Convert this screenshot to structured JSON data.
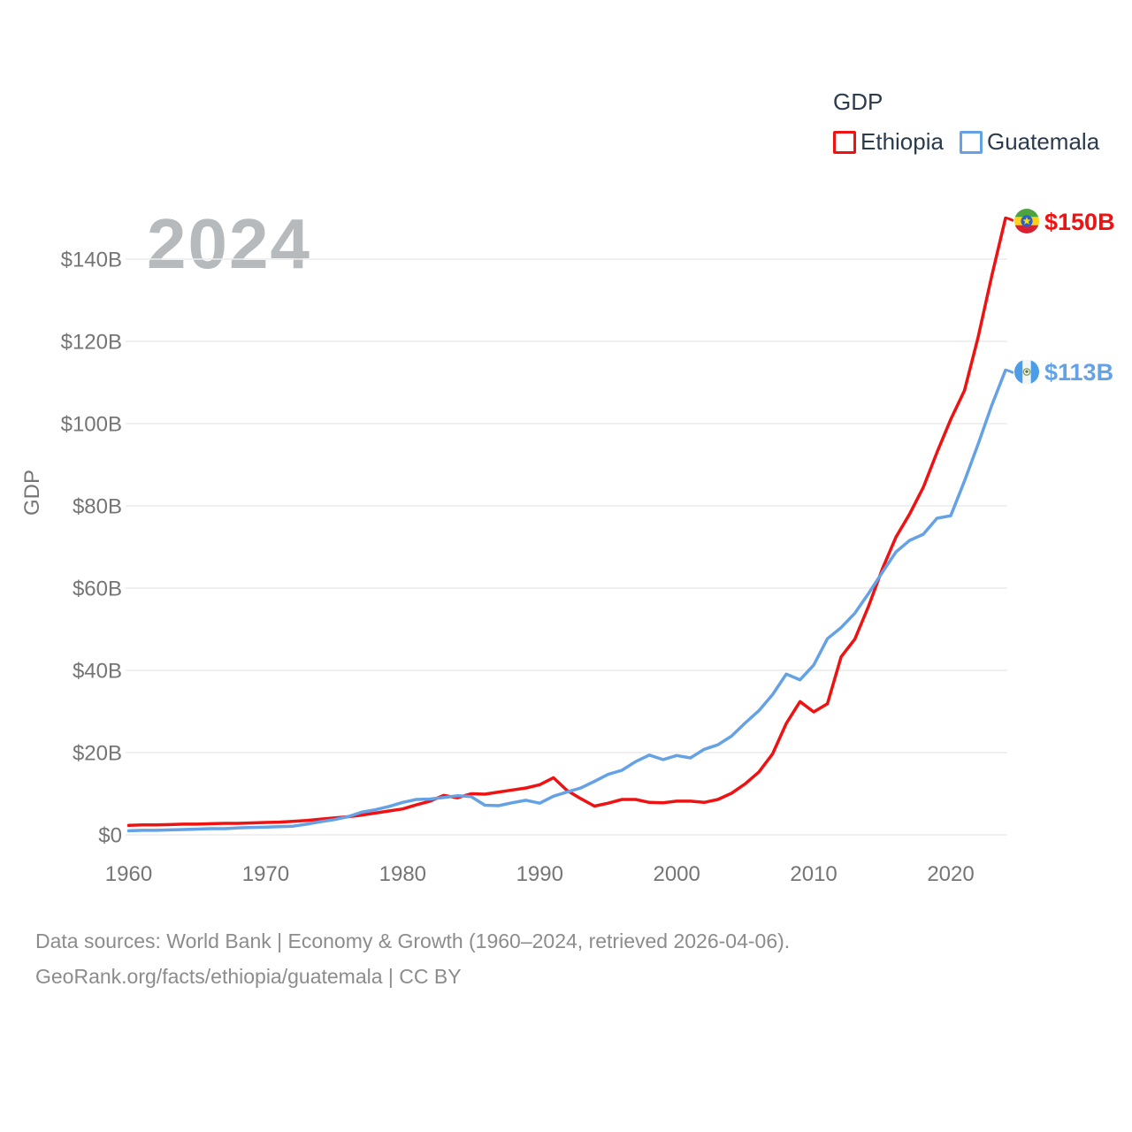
{
  "legend": {
    "title": "GDP",
    "series": [
      {
        "label": "Ethiopia",
        "color": "#ee1212"
      },
      {
        "label": "Guatemala",
        "color": "#64a2e5"
      }
    ]
  },
  "watermark": "2024",
  "axis": {
    "y_title": "GDP",
    "x_tick_labels": [
      "1960",
      "1970",
      "1980",
      "1990",
      "2000",
      "2010",
      "2020"
    ]
  },
  "end_labels": [
    {
      "series": "Ethiopia",
      "value": "$150B",
      "flag_icon": "ethiopia-flag-icon"
    },
    {
      "series": "Guatemala",
      "value": "$113B",
      "flag_icon": "guatemala-flag-icon"
    }
  ],
  "footer": {
    "line1": "Data sources: World Bank | Economy & Growth (1960–2024, retrieved 2026-04-06).",
    "line2": "GeoRank.org/facts/ethiopia/guatemala | CC BY"
  },
  "colors": {
    "ethiopia_line": "#ee1212",
    "guatemala_line": "#64a2e5",
    "grid": "#ebebeb",
    "axis_text": "#757575",
    "watermark": "#b6babd",
    "legend_text": "#2a3b4d",
    "footer_text": "#8c8c8c"
  },
  "chart_data": {
    "type": "line",
    "title": "GDP",
    "ylabel": "GDP",
    "xlabel": "",
    "ylim": [
      0,
      150
    ],
    "x_range": [
      1960,
      2024
    ],
    "grid": true,
    "legend_position": "top-right",
    "y_ticks": [
      {
        "value": 0,
        "label": "$0"
      },
      {
        "value": 20,
        "label": "$20B"
      },
      {
        "value": 40,
        "label": "$40B"
      },
      {
        "value": 60,
        "label": "$60B"
      },
      {
        "value": 80,
        "label": "$80B"
      },
      {
        "value": 100,
        "label": "$100B"
      },
      {
        "value": 120,
        "label": "$120B"
      },
      {
        "value": 140,
        "label": "$140B"
      }
    ],
    "x_ticks": [
      1960,
      1970,
      1980,
      1990,
      2000,
      2010,
      2020
    ],
    "x": [
      1960,
      1961,
      1962,
      1963,
      1964,
      1965,
      1966,
      1967,
      1968,
      1969,
      1970,
      1971,
      1972,
      1973,
      1974,
      1975,
      1976,
      1977,
      1978,
      1979,
      1980,
      1981,
      1982,
      1983,
      1984,
      1985,
      1986,
      1987,
      1988,
      1989,
      1990,
      1991,
      1992,
      1993,
      1994,
      1995,
      1996,
      1997,
      1998,
      1999,
      2000,
      2001,
      2002,
      2003,
      2004,
      2005,
      2006,
      2007,
      2008,
      2009,
      2010,
      2011,
      2012,
      2013,
      2014,
      2015,
      2016,
      2017,
      2018,
      2019,
      2020,
      2021,
      2022,
      2023,
      2024
    ],
    "series": [
      {
        "name": "Ethiopia",
        "unit": "billion USD",
        "values": [
          2.3,
          2.4,
          2.4,
          2.5,
          2.6,
          2.6,
          2.7,
          2.8,
          2.8,
          2.9,
          3.0,
          3.1,
          3.3,
          3.5,
          3.8,
          4.1,
          4.4,
          4.8,
          5.3,
          5.8,
          6.3,
          7.3,
          8.2,
          9.6,
          9.0,
          10.0,
          9.9,
          10.4,
          10.9,
          11.4,
          12.2,
          13.9,
          10.8,
          8.8,
          7.0,
          7.7,
          8.6,
          8.6,
          7.9,
          7.8,
          8.2,
          8.2,
          7.9,
          8.6,
          10.1,
          12.4,
          15.3,
          19.7,
          27.1,
          32.4,
          29.9,
          31.9,
          43.3,
          47.6,
          55.6,
          64.6,
          72.4,
          78.0,
          84.5,
          93.0,
          101.0,
          108.0,
          121.0,
          136.0,
          150.0
        ]
      },
      {
        "name": "Guatemala",
        "unit": "billion USD",
        "values": [
          1.0,
          1.1,
          1.1,
          1.2,
          1.3,
          1.4,
          1.5,
          1.5,
          1.7,
          1.8,
          1.9,
          2.0,
          2.1,
          2.6,
          3.2,
          3.7,
          4.4,
          5.5,
          6.1,
          6.9,
          7.9,
          8.6,
          8.7,
          9.1,
          9.5,
          9.3,
          7.2,
          7.1,
          7.8,
          8.4,
          7.7,
          9.4,
          10.4,
          11.4,
          13.0,
          14.7,
          15.7,
          17.8,
          19.4,
          18.3,
          19.3,
          18.7,
          20.8,
          21.9,
          24.0,
          27.2,
          30.2,
          34.1,
          39.1,
          37.7,
          41.3,
          47.7,
          50.4,
          53.9,
          58.7,
          63.8,
          68.8,
          71.6,
          73.1,
          77.0,
          77.6,
          86.0,
          95.0,
          104.5,
          113.0
        ]
      }
    ]
  }
}
